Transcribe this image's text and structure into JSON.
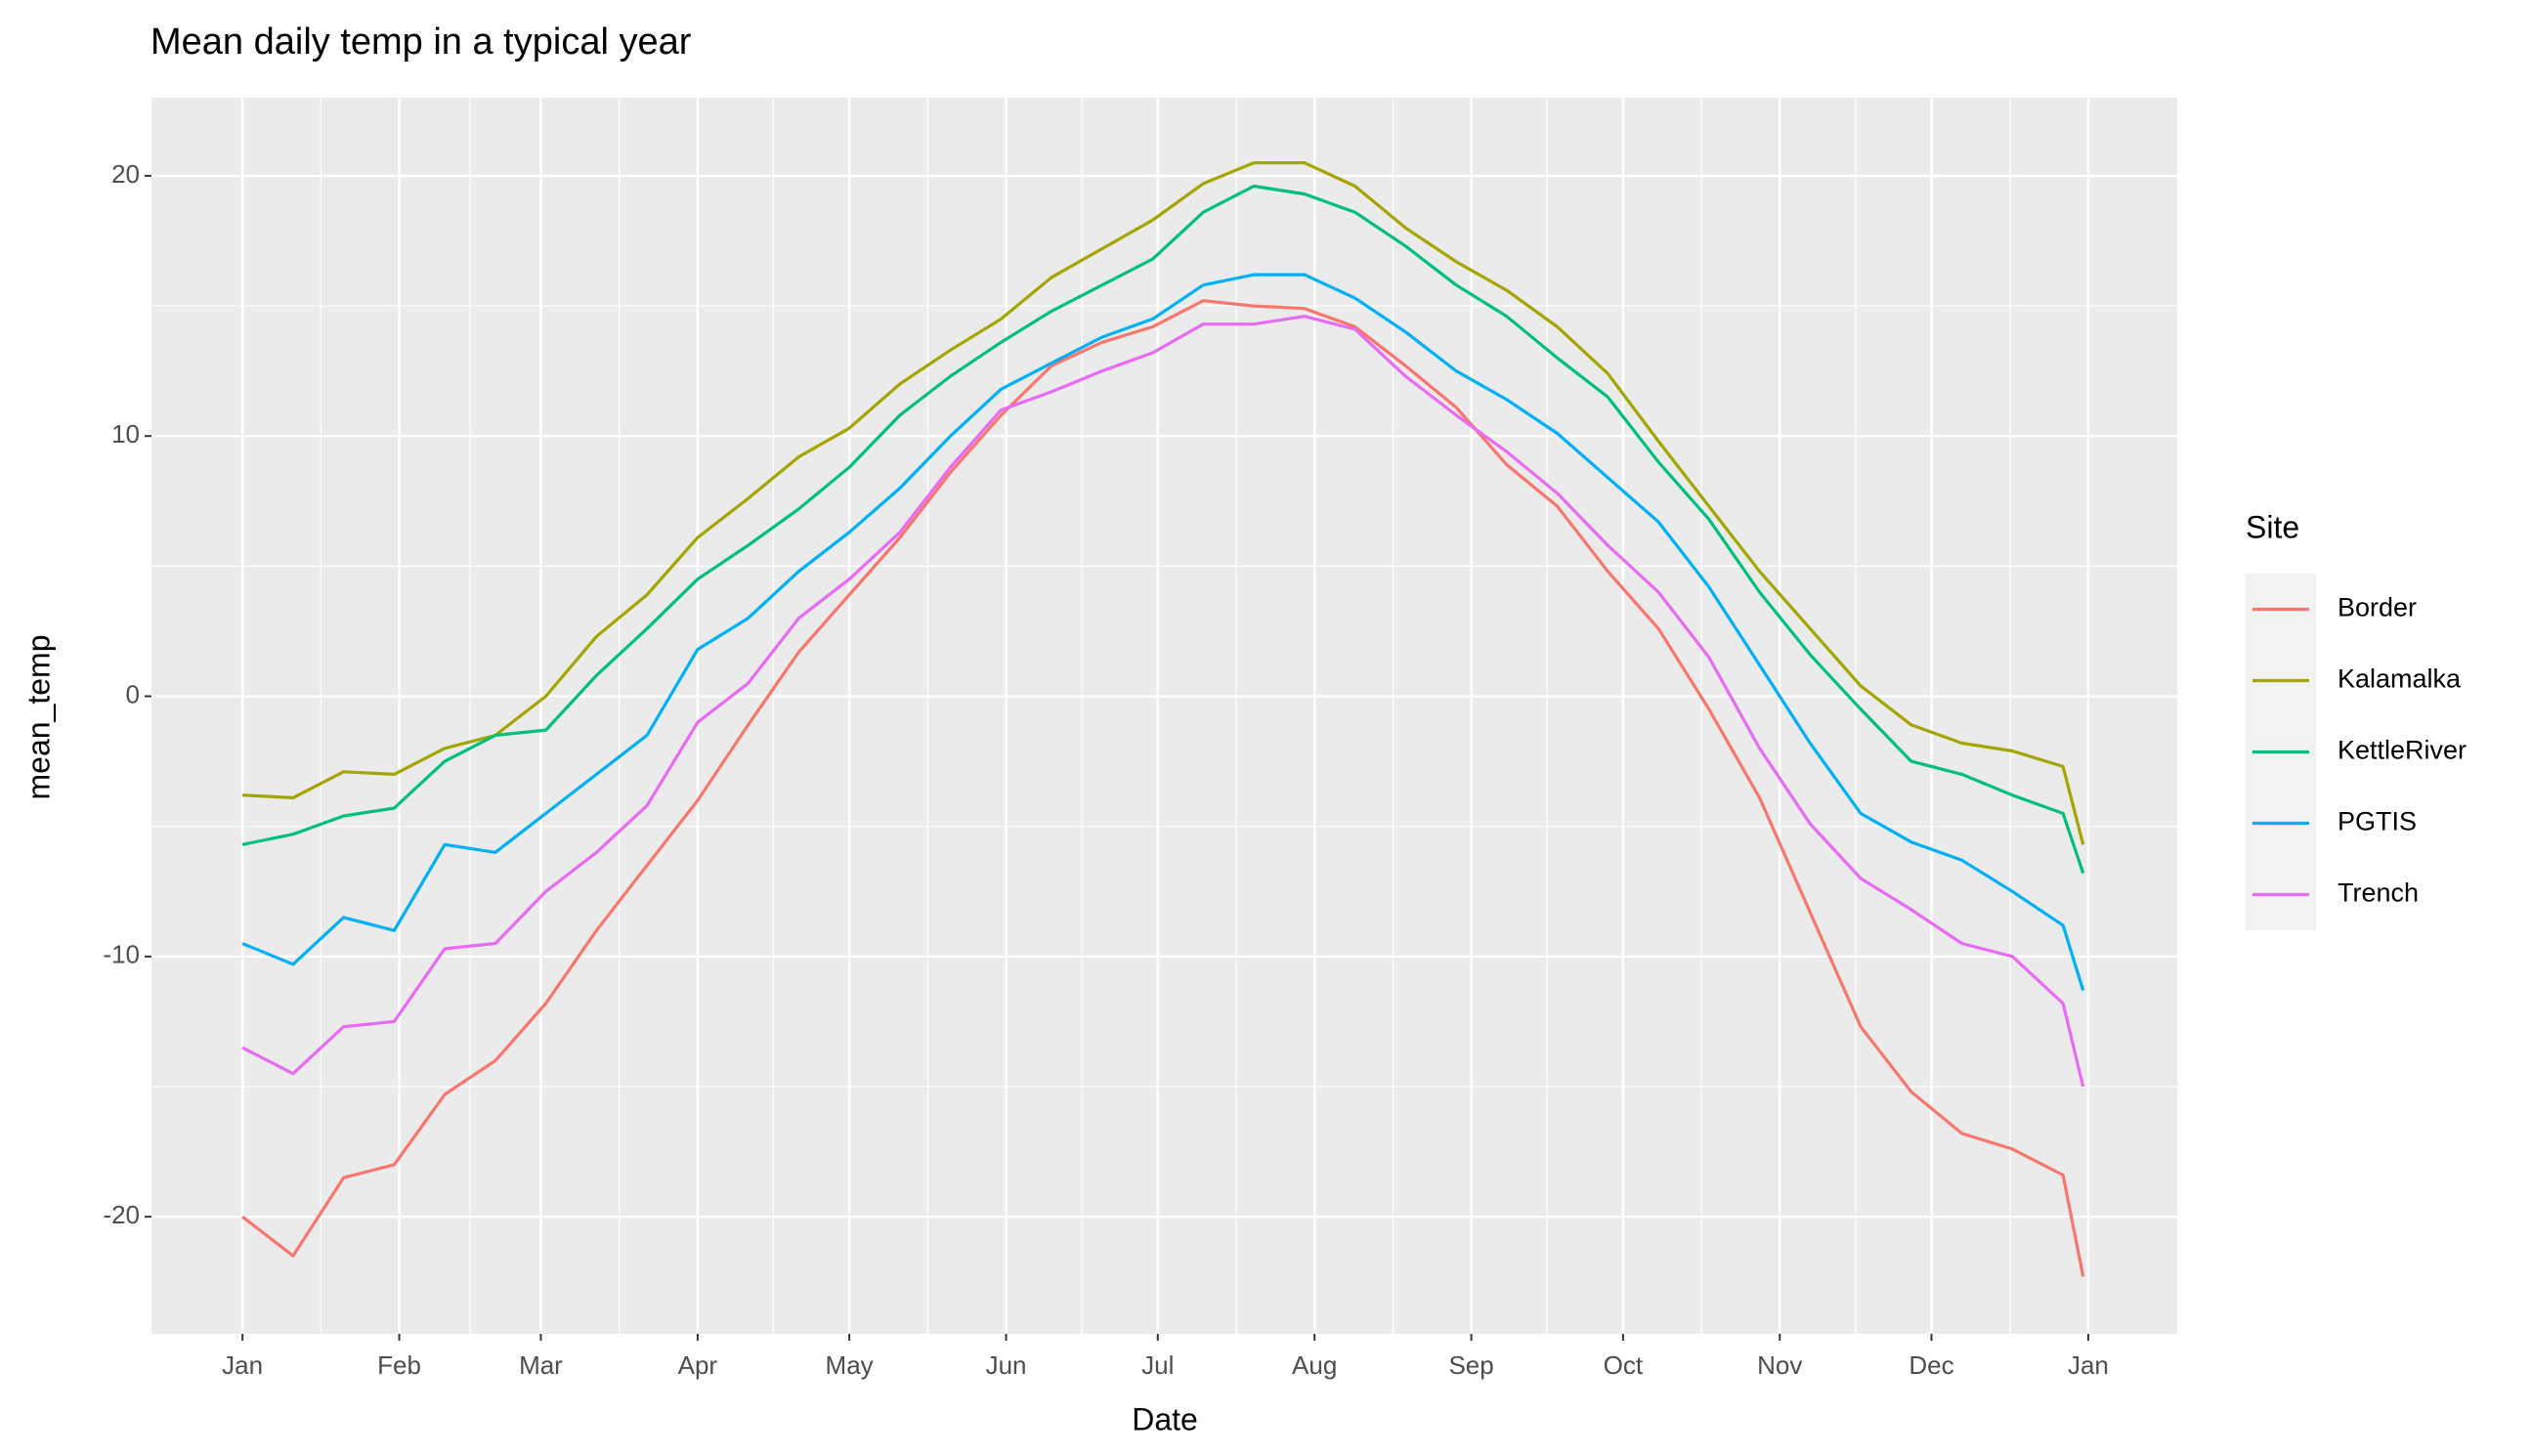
{
  "chart_data": {
    "type": "line",
    "title": "Mean daily temp in a typical year",
    "x_label": "Date",
    "y_label": "mean_temp",
    "legend_title": "Site",
    "legend": "right",
    "grid": true,
    "x": [
      0,
      10,
      20,
      30,
      40,
      50,
      60,
      70,
      80,
      90,
      100,
      110,
      120,
      130,
      140,
      150,
      160,
      170,
      180,
      190,
      200,
      210,
      220,
      230,
      240,
      250,
      260,
      270,
      280,
      290,
      300,
      310,
      320,
      330,
      340,
      350,
      360,
      364
    ],
    "xlim": [
      -18,
      382.6
    ],
    "xticks": [
      {
        "value": 0,
        "label": "Jan"
      },
      {
        "value": 31,
        "label": "Feb"
      },
      {
        "value": 59,
        "label": "Mar"
      },
      {
        "value": 90,
        "label": "Apr"
      },
      {
        "value": 120,
        "label": "May"
      },
      {
        "value": 151,
        "label": "Jun"
      },
      {
        "value": 181,
        "label": "Jul"
      },
      {
        "value": 212,
        "label": "Aug"
      },
      {
        "value": 243,
        "label": "Sep"
      },
      {
        "value": 273,
        "label": "Oct"
      },
      {
        "value": 304,
        "label": "Nov"
      },
      {
        "value": 334,
        "label": "Dec"
      },
      {
        "value": 365,
        "label": "Jan"
      }
    ],
    "ylim": [
      -24.5,
      23
    ],
    "yticks": [
      -20,
      -10,
      0,
      10,
      20
    ],
    "series": [
      {
        "name": "Border",
        "color": "#F8766D",
        "values": [
          -20,
          -21.5,
          -18.5,
          -18,
          -15.3,
          -14,
          -11.8,
          -9,
          -6.5,
          -4,
          -1.1,
          1.7,
          3.9,
          6.1,
          8.6,
          10.8,
          12.7,
          13.6,
          14.2,
          15.2,
          15,
          14.9,
          14.2,
          12.7,
          11.1,
          8.9,
          7.3,
          4.8,
          2.6,
          -0.5,
          -3.9,
          -8.3,
          -12.7,
          -15.2,
          -16.8,
          -17.4,
          -18.4,
          -22.3
        ]
      },
      {
        "name": "Kalamalka",
        "color": "#A3A500",
        "values": [
          -3.8,
          -3.9,
          -2.9,
          -3,
          -2,
          -1.5,
          0,
          2.3,
          3.9,
          6.1,
          7.6,
          9.2,
          10.3,
          12,
          13.3,
          14.5,
          16.1,
          17.2,
          18.3,
          19.7,
          20.5,
          20.5,
          19.6,
          18,
          16.7,
          15.6,
          14.2,
          12.4,
          9.8,
          7.3,
          4.8,
          2.6,
          0.4,
          -1.1,
          -1.8,
          -2.1,
          -2.7,
          -5.7
        ]
      },
      {
        "name": "KettleRiver",
        "color": "#00BF7D",
        "values": [
          -5.7,
          -5.3,
          -4.6,
          -4.3,
          -2.5,
          -1.5,
          -1.3,
          0.8,
          2.6,
          4.5,
          5.8,
          7.2,
          8.8,
          10.8,
          12.3,
          13.6,
          14.8,
          15.8,
          16.8,
          18.6,
          19.6,
          19.3,
          18.6,
          17.3,
          15.8,
          14.6,
          13,
          11.5,
          9,
          6.8,
          4,
          1.6,
          -0.5,
          -2.5,
          -3,
          -3.8,
          -4.5,
          -6.8
        ]
      },
      {
        "name": "PGTIS",
        "color": "#00B0F6",
        "values": [
          -9.5,
          -10.3,
          -8.5,
          -9,
          -5.7,
          -6,
          -4.5,
          -3,
          -1.5,
          1.8,
          3,
          4.8,
          6.3,
          8,
          10,
          11.8,
          12.8,
          13.8,
          14.5,
          15.8,
          16.2,
          16.2,
          15.3,
          14,
          12.5,
          11.4,
          10.1,
          8.4,
          6.7,
          4.2,
          1.2,
          -1.8,
          -4.5,
          -5.6,
          -6.3,
          -7.5,
          -8.8,
          -11.3
        ]
      },
      {
        "name": "Trench",
        "color": "#E76BF3",
        "values": [
          -13.5,
          -14.5,
          -12.7,
          -12.5,
          -9.7,
          -9.5,
          -7.5,
          -6,
          -4.2,
          -1,
          0.5,
          3,
          4.5,
          6.3,
          8.8,
          11,
          11.7,
          12.5,
          13.2,
          14.3,
          14.3,
          14.6,
          14.1,
          12.3,
          10.8,
          9.4,
          7.8,
          5.8,
          4,
          1.5,
          -2,
          -4.9,
          -7,
          -8.2,
          -9.5,
          -10,
          -11.8,
          -15
        ]
      }
    ]
  }
}
